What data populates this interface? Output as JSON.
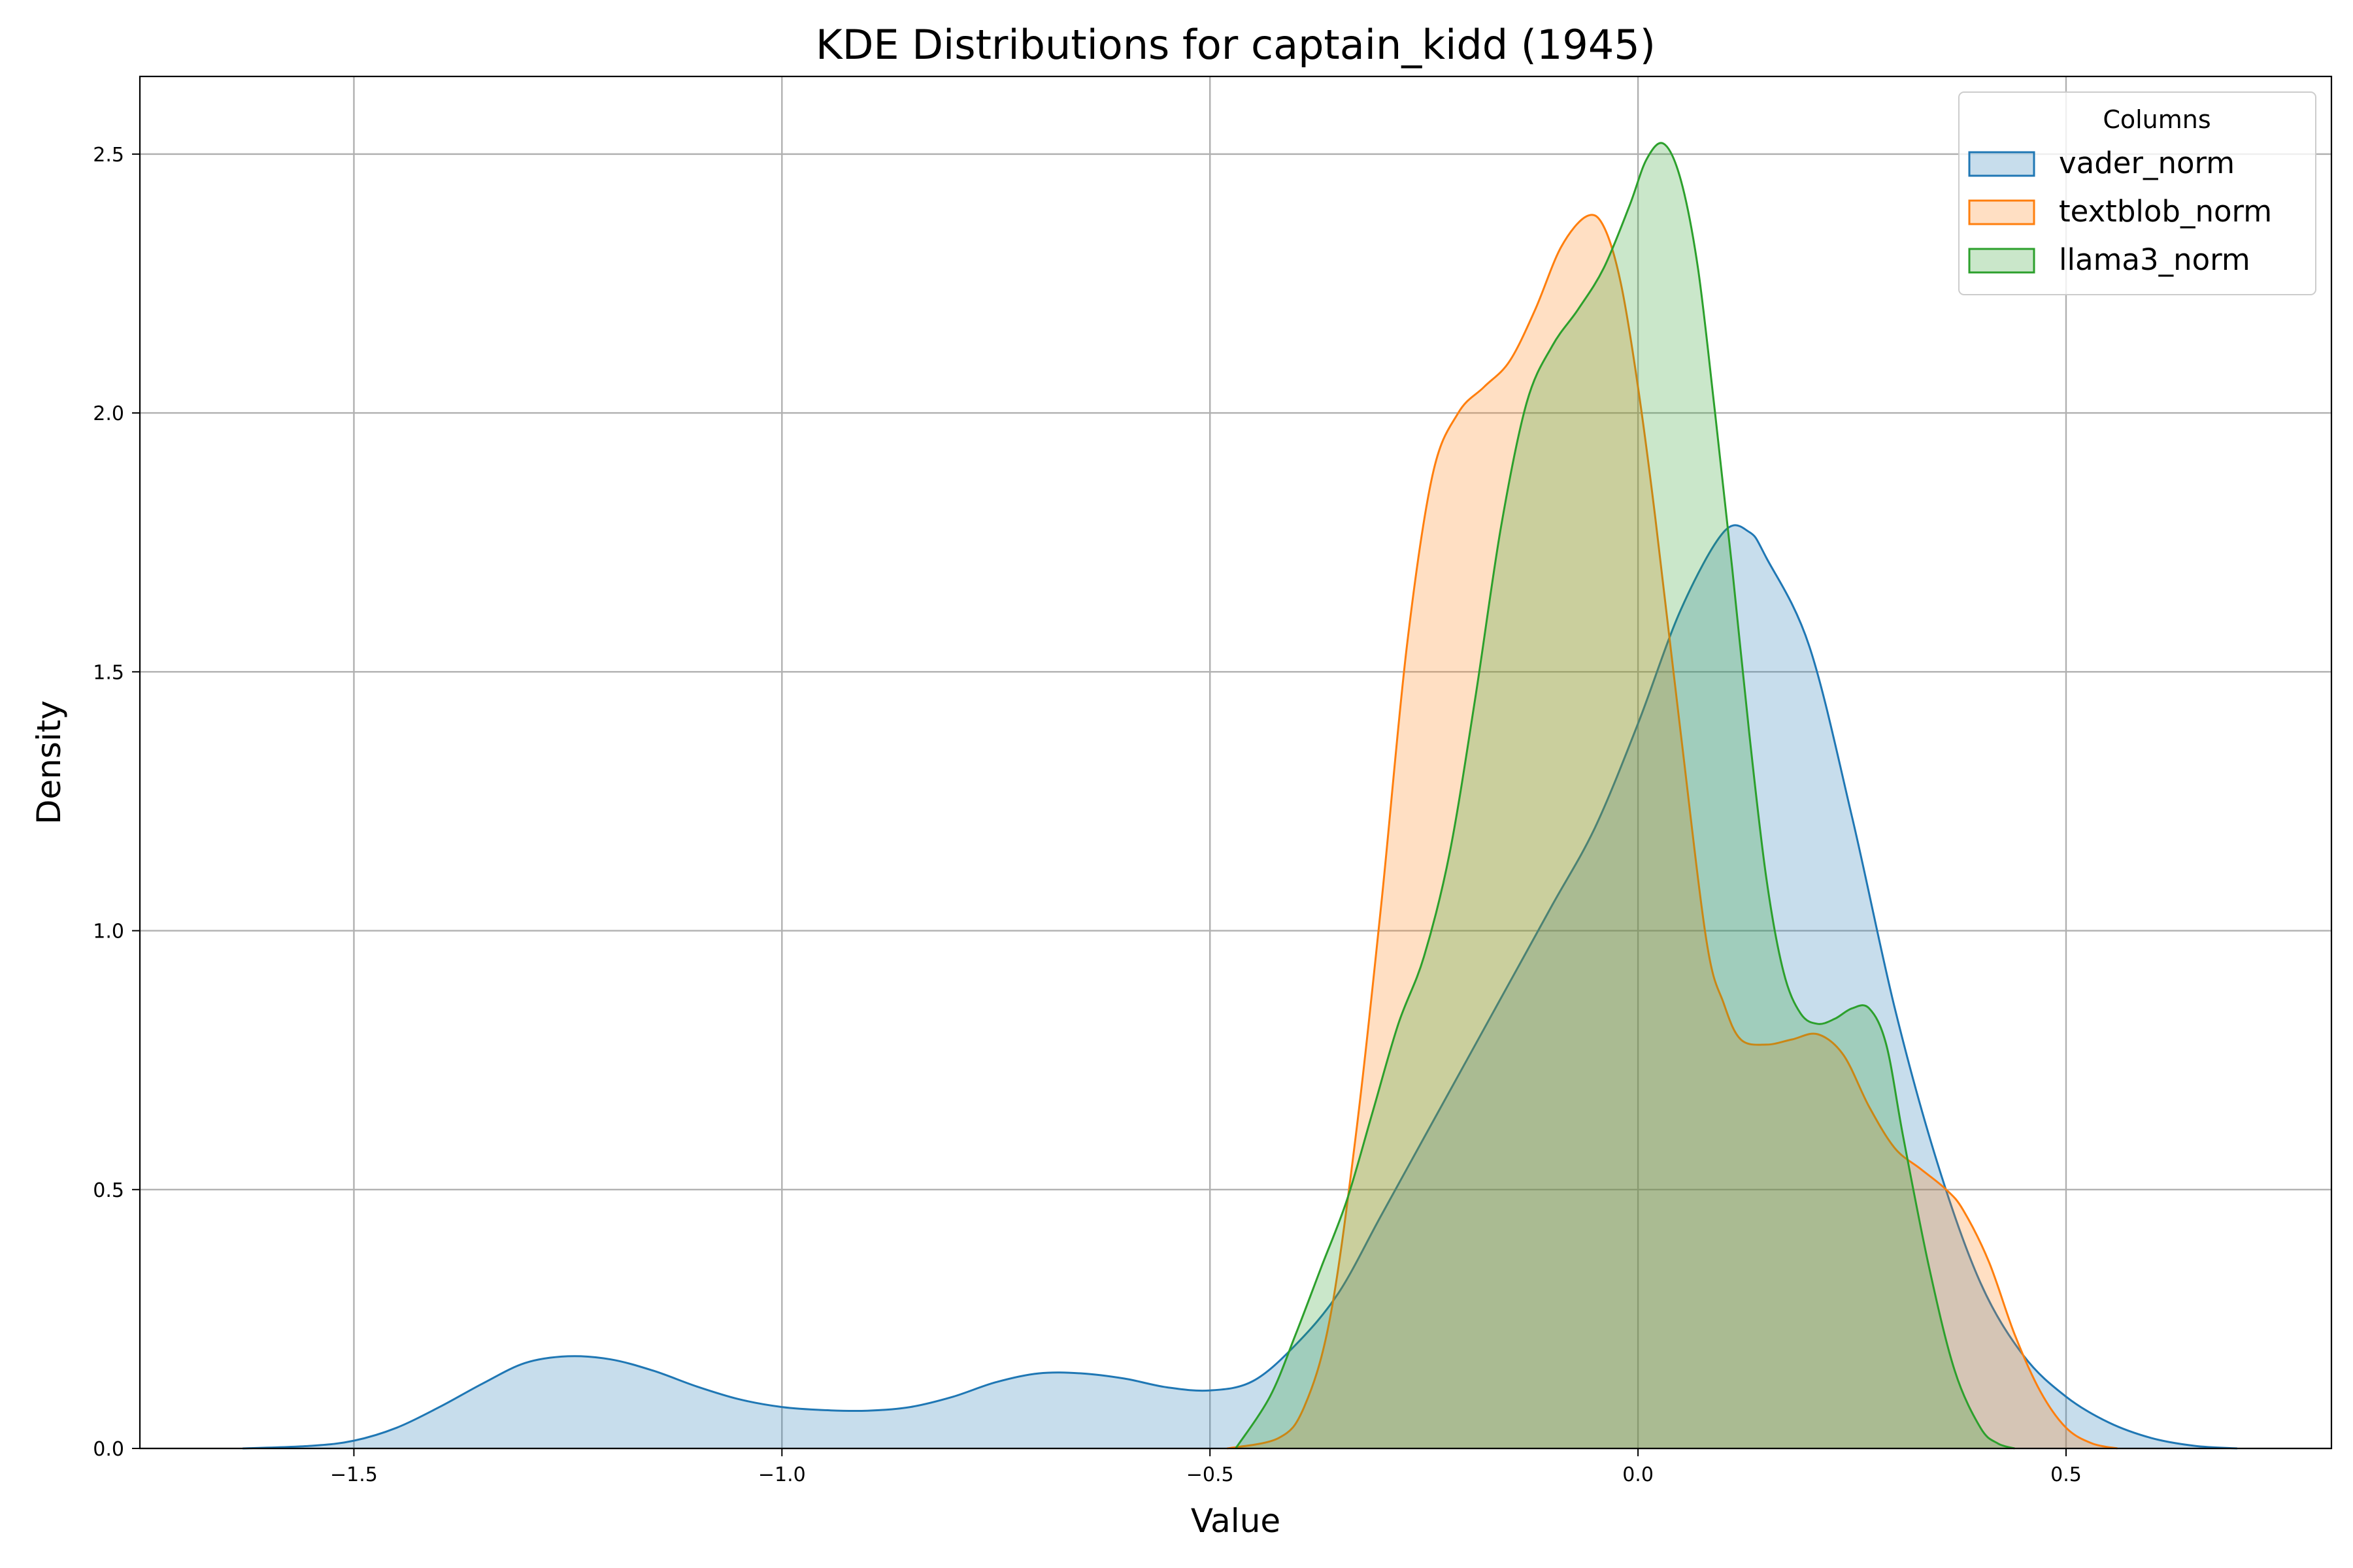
{
  "chart_data": {
    "type": "area",
    "title": "KDE Distributions for captain_kidd (1945)",
    "xlabel": "Value",
    "ylabel": "Density",
    "xlim": [
      -1.75,
      0.81
    ],
    "ylim": [
      0,
      2.65
    ],
    "x_ticks": [
      -1.5,
      -1.0,
      -0.5,
      0.0,
      0.5
    ],
    "x_tick_labels": [
      "−1.5",
      "−1.0",
      "−0.5",
      "0.0",
      "0.5"
    ],
    "y_ticks": [
      0.0,
      0.5,
      1.0,
      1.5,
      2.0,
      2.5
    ],
    "y_tick_labels": [
      "0.0",
      "0.5",
      "1.0",
      "1.5",
      "2.0",
      "2.5"
    ],
    "grid": true,
    "legend": {
      "title": "Columns",
      "placement": "top-right"
    },
    "series": [
      {
        "name": "vader_norm",
        "color": "#1f77b4",
        "points": [
          [
            -1.63,
            0.0
          ],
          [
            -1.55,
            0.005
          ],
          [
            -1.5,
            0.015
          ],
          [
            -1.45,
            0.04
          ],
          [
            -1.4,
            0.08
          ],
          [
            -1.35,
            0.125
          ],
          [
            -1.3,
            0.165
          ],
          [
            -1.25,
            0.178
          ],
          [
            -1.2,
            0.172
          ],
          [
            -1.15,
            0.15
          ],
          [
            -1.1,
            0.12
          ],
          [
            -1.05,
            0.095
          ],
          [
            -1.0,
            0.08
          ],
          [
            -0.95,
            0.074
          ],
          [
            -0.9,
            0.073
          ],
          [
            -0.85,
            0.08
          ],
          [
            -0.8,
            0.1
          ],
          [
            -0.75,
            0.128
          ],
          [
            -0.7,
            0.145
          ],
          [
            -0.65,
            0.145
          ],
          [
            -0.6,
            0.135
          ],
          [
            -0.55,
            0.118
          ],
          [
            -0.5,
            0.112
          ],
          [
            -0.45,
            0.13
          ],
          [
            -0.4,
            0.2
          ],
          [
            -0.35,
            0.3
          ],
          [
            -0.3,
            0.45
          ],
          [
            -0.25,
            0.6
          ],
          [
            -0.2,
            0.75
          ],
          [
            -0.15,
            0.9
          ],
          [
            -0.1,
            1.05
          ],
          [
            -0.05,
            1.2
          ],
          [
            0.0,
            1.4
          ],
          [
            0.05,
            1.62
          ],
          [
            0.1,
            1.77
          ],
          [
            0.13,
            1.77
          ],
          [
            0.15,
            1.72
          ],
          [
            0.2,
            1.55
          ],
          [
            0.25,
            1.22
          ],
          [
            0.3,
            0.85
          ],
          [
            0.35,
            0.55
          ],
          [
            0.4,
            0.32
          ],
          [
            0.45,
            0.18
          ],
          [
            0.5,
            0.1
          ],
          [
            0.55,
            0.05
          ],
          [
            0.6,
            0.02
          ],
          [
            0.65,
            0.005
          ],
          [
            0.7,
            0.0
          ]
        ]
      },
      {
        "name": "textblob_norm",
        "color": "#ff7f0e",
        "points": [
          [
            -0.48,
            0.0
          ],
          [
            -0.42,
            0.02
          ],
          [
            -0.39,
            0.08
          ],
          [
            -0.36,
            0.25
          ],
          [
            -0.33,
            0.6
          ],
          [
            -0.3,
            1.05
          ],
          [
            -0.27,
            1.55
          ],
          [
            -0.24,
            1.88
          ],
          [
            -0.21,
            2.0
          ],
          [
            -0.18,
            2.05
          ],
          [
            -0.15,
            2.1
          ],
          [
            -0.12,
            2.2
          ],
          [
            -0.09,
            2.32
          ],
          [
            -0.06,
            2.38
          ],
          [
            -0.04,
            2.36
          ],
          [
            -0.02,
            2.25
          ],
          [
            0.0,
            2.05
          ],
          [
            0.02,
            1.8
          ],
          [
            0.05,
            1.38
          ],
          [
            0.08,
            0.98
          ],
          [
            0.1,
            0.86
          ],
          [
            0.12,
            0.79
          ],
          [
            0.15,
            0.78
          ],
          [
            0.18,
            0.79
          ],
          [
            0.21,
            0.8
          ],
          [
            0.24,
            0.76
          ],
          [
            0.27,
            0.66
          ],
          [
            0.3,
            0.58
          ],
          [
            0.33,
            0.54
          ],
          [
            0.36,
            0.5
          ],
          [
            0.38,
            0.46
          ],
          [
            0.41,
            0.36
          ],
          [
            0.44,
            0.22
          ],
          [
            0.47,
            0.11
          ],
          [
            0.5,
            0.04
          ],
          [
            0.53,
            0.01
          ],
          [
            0.56,
            0.0
          ]
        ]
      },
      {
        "name": "llama3_norm",
        "color": "#2ca02c",
        "points": [
          [
            -0.47,
            0.0
          ],
          [
            -0.43,
            0.1
          ],
          [
            -0.4,
            0.22
          ],
          [
            -0.37,
            0.35
          ],
          [
            -0.34,
            0.48
          ],
          [
            -0.31,
            0.65
          ],
          [
            -0.28,
            0.82
          ],
          [
            -0.25,
            0.95
          ],
          [
            -0.22,
            1.15
          ],
          [
            -0.19,
            1.45
          ],
          [
            -0.16,
            1.78
          ],
          [
            -0.13,
            2.02
          ],
          [
            -0.1,
            2.13
          ],
          [
            -0.07,
            2.2
          ],
          [
            -0.04,
            2.28
          ],
          [
            -0.01,
            2.4
          ],
          [
            0.01,
            2.49
          ],
          [
            0.03,
            2.52
          ],
          [
            0.05,
            2.45
          ],
          [
            0.07,
            2.28
          ],
          [
            0.09,
            2.0
          ],
          [
            0.11,
            1.7
          ],
          [
            0.13,
            1.38
          ],
          [
            0.15,
            1.1
          ],
          [
            0.17,
            0.92
          ],
          [
            0.19,
            0.84
          ],
          [
            0.21,
            0.82
          ],
          [
            0.23,
            0.83
          ],
          [
            0.25,
            0.85
          ],
          [
            0.27,
            0.85
          ],
          [
            0.29,
            0.78
          ],
          [
            0.31,
            0.6
          ],
          [
            0.34,
            0.35
          ],
          [
            0.37,
            0.15
          ],
          [
            0.4,
            0.04
          ],
          [
            0.42,
            0.01
          ],
          [
            0.44,
            0.0
          ]
        ]
      }
    ]
  }
}
